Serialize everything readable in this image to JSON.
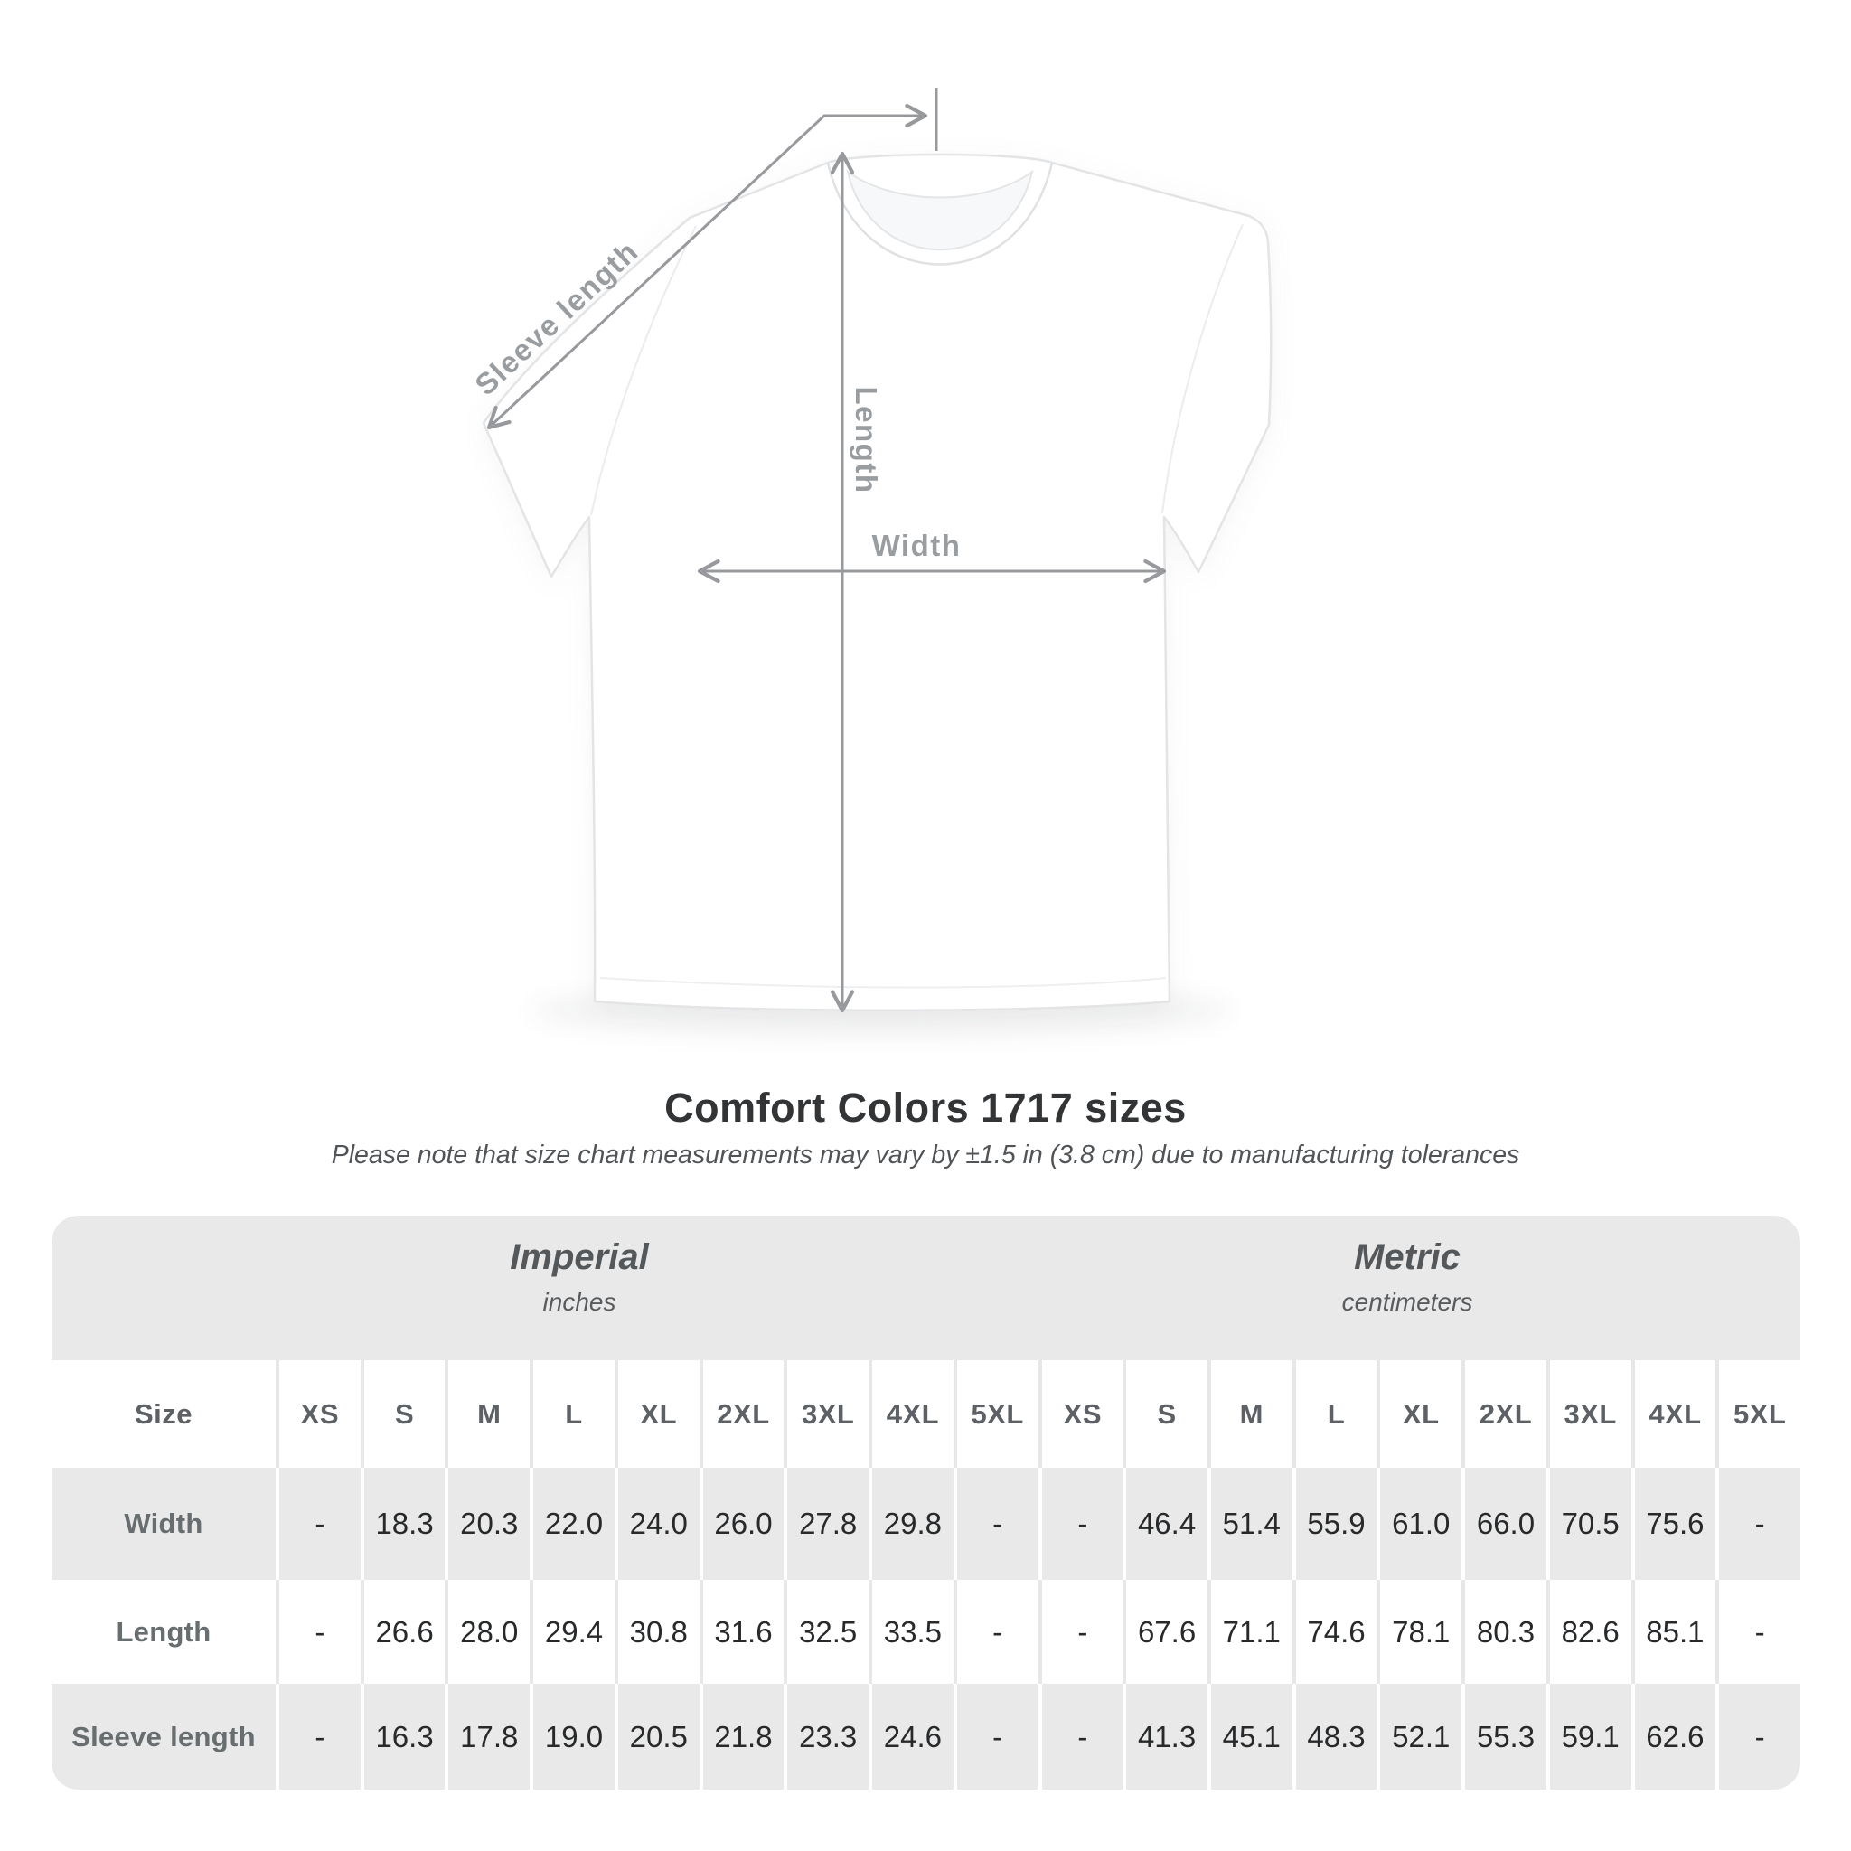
{
  "diagram": {
    "sleeve_label": "Sleeve length",
    "length_label": "Length",
    "width_label": "Width"
  },
  "title": "Comfort Colors 1717 sizes",
  "subtitle": "Please note that size chart measurements may vary by ±1.5 in (3.8 cm) due to manufacturing tolerances",
  "table": {
    "size_header": "Size",
    "groups": [
      {
        "title": "Imperial",
        "subtitle": "inches"
      },
      {
        "title": "Metric",
        "subtitle": "centimeters"
      }
    ],
    "sizes": [
      "XS",
      "S",
      "M",
      "L",
      "XL",
      "2XL",
      "3XL",
      "4XL",
      "5XL"
    ],
    "rows": [
      {
        "label": "Width",
        "imperial": [
          "-",
          "18.3",
          "20.3",
          "22.0",
          "24.0",
          "26.0",
          "27.8",
          "29.8",
          "-"
        ],
        "metric": [
          "-",
          "46.4",
          "51.4",
          "55.9",
          "61.0",
          "66.0",
          "70.5",
          "75.6",
          "-"
        ]
      },
      {
        "label": "Length",
        "imperial": [
          "-",
          "26.6",
          "28.0",
          "29.4",
          "30.8",
          "31.6",
          "32.5",
          "33.5",
          "-"
        ],
        "metric": [
          "-",
          "67.6",
          "71.1",
          "74.6",
          "78.1",
          "80.3",
          "82.6",
          "85.1",
          "-"
        ]
      },
      {
        "label": "Sleeve length",
        "imperial": [
          "-",
          "16.3",
          "17.8",
          "19.0",
          "20.5",
          "21.8",
          "23.3",
          "24.6",
          "-"
        ],
        "metric": [
          "-",
          "41.3",
          "45.1",
          "48.3",
          "52.1",
          "55.3",
          "59.1",
          "62.6",
          "-"
        ]
      }
    ]
  },
  "colors": {
    "band_gray": "#e9e9e9",
    "annotation_gray": "#97999c",
    "value_text": "#27292b",
    "header_text": "#5d6165",
    "title_text": "#323436"
  }
}
